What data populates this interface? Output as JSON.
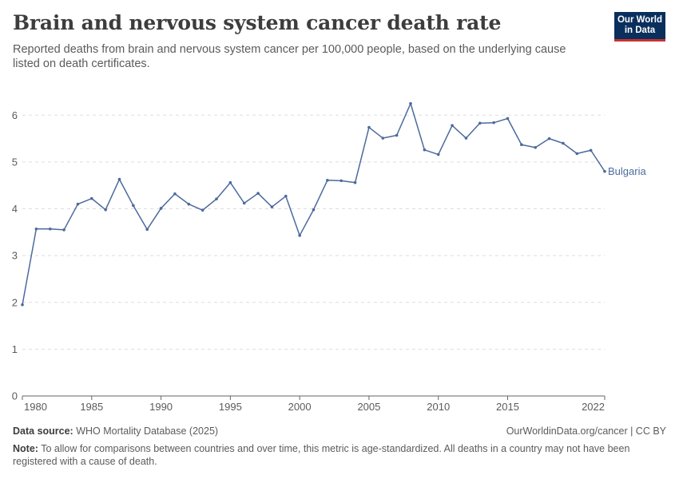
{
  "header": {
    "title": "Brain and nervous system cancer death rate",
    "subtitle": "Reported deaths from brain and nervous system cancer per 100,000 people, based on the underlying cause listed on death certificates.",
    "logo_line1": "Our World",
    "logo_line2": "in Data"
  },
  "footer": {
    "source_label": "Data source:",
    "source_text": "WHO Mortality Database (2025)",
    "url_text": "OurWorldinData.org/cancer | CC BY",
    "note_label": "Note:",
    "note_text": "To allow for comparisons between countries and over time, this metric is age-standardized. All deaths in a country may not have been registered with a cause of death."
  },
  "colors": {
    "series": "#4c6a9c",
    "grid": "#dddddd",
    "axis": "#666666",
    "text": "#5b5b5b"
  },
  "chart_data": {
    "type": "line",
    "title": "Brain and nervous system cancer death rate",
    "xlabel": "",
    "ylabel": "",
    "xlim": [
      1980,
      2022
    ],
    "ylim": [
      0,
      6.5
    ],
    "yticks": [
      0,
      1,
      2,
      3,
      4,
      5,
      6
    ],
    "xticks": [
      1980,
      1985,
      1990,
      1995,
      2000,
      2005,
      2010,
      2015,
      2022
    ],
    "grid": true,
    "legend": "end-label",
    "series": [
      {
        "name": "Bulgaria",
        "x": [
          1980,
          1981,
          1982,
          1983,
          1984,
          1985,
          1986,
          1987,
          1988,
          1989,
          1990,
          1991,
          1992,
          1993,
          1994,
          1995,
          1996,
          1997,
          1998,
          1999,
          2000,
          2001,
          2002,
          2003,
          2004,
          2005,
          2006,
          2007,
          2008,
          2009,
          2010,
          2011,
          2012,
          2013,
          2014,
          2015,
          2016,
          2017,
          2018,
          2019,
          2020,
          2021,
          2022
        ],
        "y": [
          1.95,
          3.57,
          3.57,
          3.55,
          4.1,
          4.22,
          3.98,
          4.63,
          4.07,
          3.56,
          4.01,
          4.32,
          4.1,
          3.97,
          4.21,
          4.56,
          4.12,
          4.33,
          4.04,
          4.27,
          3.43,
          3.98,
          4.61,
          4.6,
          4.56,
          5.74,
          5.51,
          5.57,
          6.25,
          5.26,
          5.16,
          5.78,
          5.51,
          5.83,
          5.84,
          5.93,
          5.37,
          5.31,
          5.5,
          5.4,
          5.18,
          5.25,
          4.8
        ]
      }
    ]
  }
}
